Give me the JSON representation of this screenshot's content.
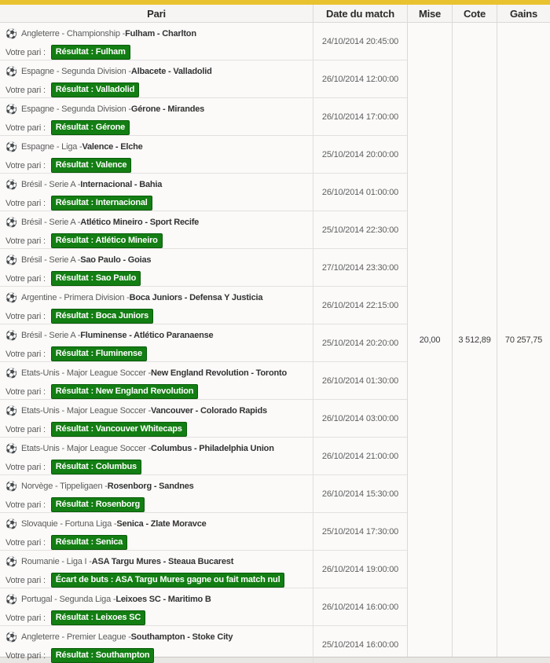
{
  "colors": {
    "accent_yellow": "#e9c22f",
    "badge_green": "#137e13",
    "badge_green_border": "#0a5c0a"
  },
  "icons": {
    "soccer_ball": "⚽"
  },
  "table": {
    "headers": {
      "pari": "Pari",
      "date": "Date du match",
      "mise": "Mise",
      "cote": "Cote",
      "gains": "Gains"
    },
    "votre_pari_label": "Votre pari :",
    "rows": [
      {
        "league": "Angleterre - Championship - ",
        "match": "Fulham - Charlton",
        "bet": "Résultat : Fulham",
        "date": "24/10/2014 20:45:00"
      },
      {
        "league": "Espagne - Segunda Division - ",
        "match": "Albacete - Valladolid",
        "bet": "Résultat : Valladolid",
        "date": "26/10/2014 12:00:00"
      },
      {
        "league": "Espagne - Segunda Division - ",
        "match": "Gérone - Mirandes",
        "bet": "Résultat : Gérone",
        "date": "26/10/2014 17:00:00"
      },
      {
        "league": "Espagne - Liga - ",
        "match": "Valence - Elche",
        "bet": "Résultat : Valence",
        "date": "25/10/2014 20:00:00"
      },
      {
        "league": "Brésil - Serie A - ",
        "match": "Internacional - Bahia",
        "bet": "Résultat : Internacional",
        "date": "26/10/2014 01:00:00"
      },
      {
        "league": "Brésil - Serie A - ",
        "match": "Atlético Mineiro - Sport Recife",
        "bet": "Résultat : Atlético Mineiro",
        "date": "25/10/2014 22:30:00"
      },
      {
        "league": "Brésil - Serie A - ",
        "match": "Sao Paulo - Goias",
        "bet": "Résultat : Sao Paulo",
        "date": "27/10/2014 23:30:00"
      },
      {
        "league": "Argentine - Primera Division - ",
        "match": "Boca Juniors - Defensa Y Justicia",
        "bet": "Résultat : Boca Juniors",
        "date": "26/10/2014 22:15:00"
      },
      {
        "league": "Brésil - Serie A - ",
        "match": "Fluminense - Atlético Paranaense",
        "bet": "Résultat : Fluminense",
        "date": "25/10/2014 20:20:00"
      },
      {
        "league": "Etats-Unis - Major League Soccer - ",
        "match": "New England Revolution - Toronto",
        "bet": "Résultat : New England Revolution",
        "date": "26/10/2014 01:30:00"
      },
      {
        "league": "Etats-Unis - Major League Soccer - ",
        "match": "Vancouver - Colorado Rapids",
        "bet": "Résultat : Vancouver Whitecaps",
        "date": "26/10/2014 03:00:00"
      },
      {
        "league": "Etats-Unis - Major League Soccer - ",
        "match": "Columbus - Philadelphia Union",
        "bet": "Résultat : Columbus",
        "date": "26/10/2014 21:00:00"
      },
      {
        "league": "Norvège - Tippeligaen - ",
        "match": "Rosenborg - Sandnes",
        "bet": "Résultat : Rosenborg",
        "date": "26/10/2014 15:30:00"
      },
      {
        "league": "Slovaquie - Fortuna Liga - ",
        "match": "Senica - Zlate Moravce",
        "bet": "Résultat : Senica",
        "date": "25/10/2014 17:30:00"
      },
      {
        "league": "Roumanie - Liga I - ",
        "match": "ASA Targu Mures - Steaua Bucarest",
        "bet": "Écart de buts : ASA Targu Mures gagne ou fait match nul",
        "date": "26/10/2014 19:00:00"
      },
      {
        "league": "Portugal - Segunda Liga - ",
        "match": "Leixoes SC - Maritimo B",
        "bet": "Résultat : Leixoes SC",
        "date": "26/10/2014 16:00:00"
      },
      {
        "league": "Angleterre - Premier League - ",
        "match": "Southampton - Stoke City",
        "bet": "Résultat : Southampton",
        "date": "25/10/2014 16:00:00"
      }
    ],
    "summary": {
      "mise": "20,00",
      "cote": "3 512,89",
      "gains": "70 257,75"
    }
  }
}
